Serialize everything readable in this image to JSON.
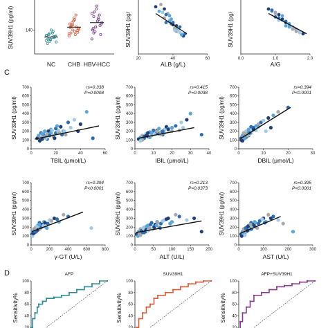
{
  "panels": {
    "c_letter": "C",
    "d_letter": "D"
  },
  "chart_data": [
    {
      "type": "scatter",
      "chart": "group-dotplot",
      "ylabel": "SUV39H1 (pg/ml)",
      "categories": [
        "NC",
        "CHB",
        "HBV-HCC"
      ],
      "yticks": [
        "140"
      ],
      "colors": [
        "#2e8b8f",
        "#e05a3a",
        "#7a3b8f"
      ],
      "groups": [
        {
          "name": "NC",
          "values": [
            105,
            110,
            112,
            115,
            118,
            120,
            122,
            125,
            108,
            130,
            115,
            100,
            95,
            128,
            140,
            135,
            118,
            122,
            110,
            102
          ]
        },
        {
          "name": "CHB",
          "values": [
            120,
            130,
            140,
            135,
            150,
            145,
            160,
            155,
            170,
            125,
            138,
            142,
            148,
            165,
            180,
            190,
            132,
            128,
            152,
            158,
            175
          ]
        },
        {
          "name": "HBV-HCC",
          "values": [
            110,
            130,
            150,
            170,
            190,
            160,
            140,
            200,
            210,
            180,
            155,
            165,
            145,
            135,
            220,
            175,
            125,
            195,
            185,
            150
          ]
        }
      ]
    },
    {
      "type": "scatter",
      "xlabel": "ALB (g/L)",
      "ylabel": "SUV39H1 (pg/",
      "xticks": [
        "20",
        "40",
        "60"
      ],
      "x": [
        30,
        32,
        35,
        36,
        38,
        40,
        41,
        42,
        44,
        45,
        46,
        38,
        37,
        40,
        43,
        35,
        39,
        41,
        36,
        44,
        42,
        45,
        33,
        47,
        34,
        40,
        38,
        42,
        39,
        41
      ],
      "y": [
        270,
        250,
        220,
        200,
        210,
        190,
        170,
        160,
        180,
        150,
        140,
        230,
        240,
        200,
        165,
        260,
        215,
        175,
        235,
        155,
        185,
        145,
        280,
        150,
        245,
        190,
        205,
        175,
        195,
        165
      ],
      "fit": [
        [
          30,
          240
        ],
        [
          48,
          150
        ]
      ]
    },
    {
      "type": "scatter",
      "xlabel": "A/G",
      "ylabel": "SUV39H1 (pg/",
      "xticks": [
        "0.0",
        "1.0",
        "2.0"
      ],
      "x": [
        0.8,
        0.9,
        1.0,
        1.1,
        1.2,
        1.3,
        1.4,
        1.5,
        1.6,
        1.7,
        1.8,
        1.2,
        1.0,
        1.3,
        1.5,
        1.1,
        1.4,
        1.6,
        0.9,
        1.7,
        1.2,
        1.3,
        1.5,
        1.0,
        1.1,
        1.8,
        1.4,
        1.6
      ],
      "y": [
        260,
        250,
        240,
        220,
        210,
        200,
        190,
        180,
        170,
        160,
        150,
        230,
        245,
        205,
        175,
        235,
        195,
        165,
        255,
        155,
        215,
        185,
        170,
        225,
        210,
        150,
        180,
        160
      ],
      "fit": [
        [
          0.8,
          240
        ],
        [
          1.9,
          150
        ]
      ]
    },
    {
      "type": "scatter",
      "xlabel": "TBIL  (μmol/L)",
      "ylabel": "SUV39H1 (pg/ml)",
      "stat": [
        "rs=0.338",
        "P=0.0008"
      ],
      "xticks": [
        "0",
        "20",
        "40",
        "60"
      ],
      "yticks": [
        "0",
        "100",
        "200",
        "300",
        "400",
        "500",
        "600",
        "700"
      ],
      "xlim": [
        0,
        60
      ],
      "ylim": [
        0,
        700
      ],
      "x": [
        5,
        6,
        7,
        8,
        9,
        10,
        11,
        12,
        13,
        14,
        15,
        16,
        18,
        20,
        22,
        24,
        26,
        28,
        30,
        35,
        40,
        45,
        8,
        10,
        12,
        14,
        16,
        18,
        20,
        22,
        9,
        11,
        13,
        15,
        17,
        19,
        21,
        23,
        25,
        27,
        7,
        9,
        11,
        50,
        32,
        38
      ],
      "y": [
        120,
        150,
        100,
        180,
        130,
        160,
        200,
        140,
        110,
        190,
        170,
        220,
        150,
        180,
        210,
        250,
        200,
        160,
        300,
        330,
        280,
        420,
        130,
        160,
        120,
        200,
        180,
        140,
        230,
        190,
        110,
        140,
        170,
        150,
        210,
        120,
        260,
        180,
        160,
        200,
        90,
        170,
        130,
        120,
        240,
        200
      ],
      "fit": [
        [
          3,
          110
        ],
        [
          55,
          260
        ]
      ]
    },
    {
      "type": "scatter",
      "xlabel": "IBIL  (μmol/L)",
      "ylabel": "SUV39H1 (pg/ml)",
      "stat": [
        "rs=0.415",
        "P=0.0038"
      ],
      "xticks": [
        "0",
        "10",
        "20",
        "30",
        "40"
      ],
      "yticks": [
        "0",
        "100",
        "200",
        "300",
        "400",
        "500",
        "600",
        "700"
      ],
      "xlim": [
        0,
        40
      ],
      "ylim": [
        0,
        700
      ],
      "x": [
        2,
        3,
        4,
        5,
        6,
        7,
        8,
        9,
        10,
        11,
        12,
        13,
        14,
        15,
        16,
        17,
        18,
        20,
        22,
        25,
        28,
        30,
        4,
        5,
        6,
        7,
        8,
        9,
        10,
        11,
        12,
        13,
        14,
        15,
        16,
        18,
        20,
        24,
        36,
        3,
        6,
        9,
        12,
        15,
        26
      ],
      "y": [
        110,
        130,
        150,
        120,
        170,
        140,
        190,
        160,
        200,
        180,
        210,
        170,
        190,
        160,
        220,
        250,
        230,
        200,
        260,
        300,
        330,
        400,
        100,
        140,
        160,
        180,
        130,
        150,
        210,
        170,
        190,
        230,
        160,
        200,
        180,
        220,
        240,
        210,
        160,
        90,
        150,
        180,
        200,
        190,
        240
      ],
      "fit": [
        [
          2,
          120
        ],
        [
          32,
          240
        ]
      ]
    },
    {
      "type": "scatter",
      "xlabel": "DBIL  (μmol/L)",
      "ylabel": "SUV39H1 (pg/ml)",
      "stat": [
        "rs=0.394",
        "P<0.0001"
      ],
      "xticks": [
        "0",
        "10",
        "20",
        "30"
      ],
      "yticks": [
        "0",
        "100",
        "200",
        "300",
        "400",
        "500",
        "600",
        "700"
      ],
      "xlim": [
        0,
        30
      ],
      "ylim": [
        0,
        700
      ],
      "x": [
        1,
        1.5,
        2,
        2.5,
        3,
        3.5,
        4,
        4.5,
        5,
        5.5,
        6,
        7,
        8,
        9,
        10,
        12,
        14,
        16,
        20,
        2,
        3,
        4,
        5,
        6,
        7,
        1,
        2,
        3,
        4,
        5,
        6,
        8,
        2,
        3,
        4,
        1.5,
        2.5,
        3.5,
        4.5,
        11,
        13
      ],
      "y": [
        120,
        150,
        180,
        140,
        200,
        170,
        220,
        190,
        250,
        210,
        230,
        260,
        280,
        300,
        320,
        350,
        380,
        420,
        470,
        130,
        160,
        200,
        180,
        240,
        210,
        100,
        140,
        170,
        150,
        190,
        220,
        250,
        110,
        130,
        160,
        90,
        120,
        150,
        180,
        200,
        240
      ],
      "fit": [
        [
          1,
          120
        ],
        [
          21,
          470
        ]
      ]
    },
    {
      "type": "scatter",
      "xlabel": "γ-GT  (U/L)",
      "ylabel": "SUV39H1 (pg/ml)",
      "stat": [
        "rs=0.394",
        "P<0.0001"
      ],
      "xticks": [
        "0",
        "200",
        "400",
        "600",
        "800"
      ],
      "yticks": [
        "0",
        "100",
        "200",
        "300",
        "400",
        "500",
        "600",
        "700"
      ],
      "xlim": [
        0,
        800
      ],
      "ylim": [
        0,
        700
      ],
      "x": [
        10,
        20,
        30,
        40,
        50,
        60,
        70,
        80,
        90,
        100,
        120,
        140,
        160,
        180,
        200,
        250,
        300,
        350,
        400,
        15,
        25,
        35,
        45,
        55,
        65,
        75,
        85,
        95,
        110,
        130,
        150,
        170,
        220,
        280,
        650
      ],
      "y": [
        120,
        150,
        180,
        140,
        200,
        170,
        220,
        190,
        250,
        210,
        230,
        260,
        200,
        240,
        280,
        300,
        260,
        340,
        320,
        100,
        130,
        160,
        190,
        150,
        210,
        170,
        230,
        180,
        200,
        220,
        250,
        190,
        270,
        290,
        190
      ],
      "fit": [
        [
          10,
          150
        ],
        [
          560,
          370
        ]
      ]
    },
    {
      "type": "scatter",
      "xlabel": "ALT  (U/L)",
      "ylabel": "SUV39H1 (pg/ml)",
      "stat": [
        "rs=0.213",
        "P=0.0373"
      ],
      "xticks": [
        "0",
        "50",
        "100",
        "150",
        "200"
      ],
      "yticks": [
        "0",
        "100",
        "200",
        "300",
        "400",
        "500",
        "600",
        "700"
      ],
      "xlim": [
        0,
        200
      ],
      "ylim": [
        0,
        700
      ],
      "x": [
        5,
        10,
        15,
        20,
        25,
        30,
        35,
        40,
        45,
        50,
        55,
        60,
        65,
        70,
        80,
        90,
        100,
        110,
        120,
        140,
        160,
        8,
        12,
        18,
        22,
        28,
        32,
        38,
        42,
        48,
        52,
        58,
        62,
        68,
        75,
        85,
        95,
        15,
        25,
        35,
        180
      ],
      "y": [
        120,
        150,
        180,
        140,
        200,
        170,
        220,
        190,
        250,
        210,
        230,
        260,
        200,
        240,
        280,
        300,
        260,
        340,
        320,
        280,
        300,
        100,
        130,
        160,
        190,
        150,
        210,
        170,
        230,
        180,
        200,
        220,
        250,
        190,
        270,
        290,
        240,
        110,
        140,
        160,
        150
      ],
      "fit": [
        [
          3,
          140
        ],
        [
          180,
          270
        ]
      ]
    },
    {
      "type": "scatter",
      "xlabel": "AST  (U/L)",
      "ylabel": "SUV39H1 (pg/ml)",
      "stat": [
        "rs=0.395",
        "P<0.0001"
      ],
      "xticks": [
        "0",
        "100",
        "200",
        "300"
      ],
      "yticks": [
        "0",
        "100",
        "200",
        "300",
        "400",
        "500",
        "600",
        "700"
      ],
      "xlim": [
        0,
        300
      ],
      "ylim": [
        0,
        700
      ],
      "x": [
        10,
        15,
        20,
        25,
        30,
        35,
        40,
        45,
        50,
        55,
        60,
        65,
        70,
        80,
        90,
        100,
        110,
        120,
        140,
        160,
        12,
        18,
        22,
        28,
        32,
        38,
        42,
        48,
        52,
        58,
        62,
        68,
        75,
        85,
        95,
        130,
        220,
        180,
        105,
        25,
        35
      ],
      "y": [
        120,
        150,
        180,
        140,
        200,
        170,
        220,
        190,
        250,
        210,
        230,
        260,
        200,
        240,
        280,
        300,
        260,
        340,
        320,
        280,
        100,
        130,
        160,
        190,
        150,
        210,
        170,
        230,
        180,
        200,
        220,
        250,
        190,
        270,
        290,
        300,
        150,
        240,
        250,
        110,
        160
      ],
      "fit": [
        [
          5,
          130
        ],
        [
          170,
          320
        ]
      ]
    },
    {
      "type": "line",
      "chart": "roc",
      "title": "AFP",
      "ylabel": "Sensitivity%",
      "yticks": [
        "100",
        "80",
        "60",
        "40",
        "20"
      ],
      "color": "#2e8b8f",
      "fpr": [
        0,
        0,
        0.02,
        0.05,
        0.08,
        0.1,
        0.15,
        0.2,
        0.3,
        0.4,
        0.5,
        0.6,
        0.7,
        0.8,
        0.9,
        1.0
      ],
      "tpr": [
        0,
        0.2,
        0.35,
        0.45,
        0.55,
        0.6,
        0.65,
        0.7,
        0.72,
        0.75,
        0.8,
        0.85,
        0.9,
        0.95,
        1.0,
        1.0
      ]
    },
    {
      "type": "line",
      "chart": "roc",
      "title": "SUV39H1",
      "ylabel": "Sensitivity%",
      "yticks": [
        "100",
        "80",
        "60",
        "40",
        "20"
      ],
      "color": "#e05a3a",
      "fpr": [
        0,
        0.02,
        0.05,
        0.1,
        0.15,
        0.2,
        0.25,
        0.3,
        0.4,
        0.5,
        0.6,
        0.7,
        0.8,
        0.9,
        1.0
      ],
      "tpr": [
        0,
        0.2,
        0.35,
        0.45,
        0.55,
        0.6,
        0.7,
        0.75,
        0.8,
        0.85,
        0.9,
        0.95,
        0.98,
        1.0,
        1.0
      ]
    },
    {
      "type": "line",
      "chart": "roc",
      "title": "AFP+SUV39H1",
      "ylabel": "Sensitivity%",
      "yticks": [
        "100",
        "80",
        "60",
        "40",
        "20"
      ],
      "color": "#8a3b8f",
      "fpr": [
        0,
        0.02,
        0.05,
        0.1,
        0.15,
        0.2,
        0.3,
        0.4,
        0.5,
        0.6,
        0.7,
        0.8,
        0.9,
        1.0
      ],
      "tpr": [
        0,
        0.3,
        0.45,
        0.55,
        0.65,
        0.75,
        0.8,
        0.85,
        0.9,
        0.92,
        0.95,
        0.98,
        1.0,
        1.0
      ]
    }
  ]
}
